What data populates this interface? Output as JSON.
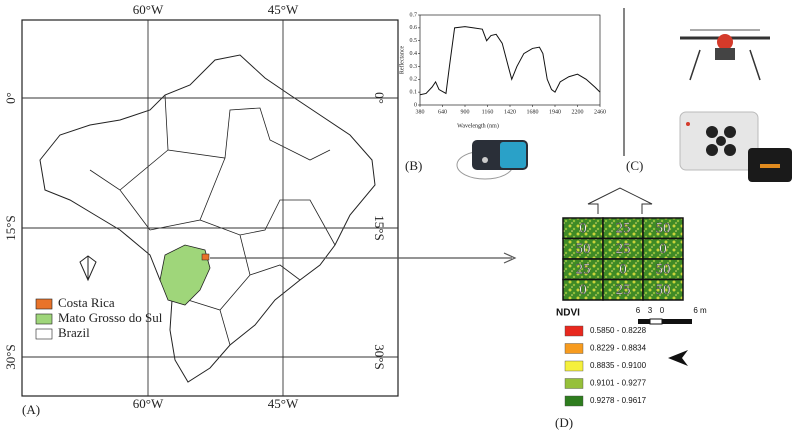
{
  "map": {
    "top_labels": [
      "60°W",
      "45°W"
    ],
    "bottom_labels": [
      "60°W",
      "45°W"
    ],
    "left_labels": [
      "0°",
      "15°S",
      "30°S"
    ],
    "right_labels": [
      "0°",
      "15°S",
      "30°S"
    ],
    "legend": [
      {
        "name": "Costa Rica",
        "color": "#e8732a"
      },
      {
        "name": "Mato Grosso do Sul",
        "color": "#9fd67a"
      },
      {
        "name": "Brazil",
        "color": "#ffffff"
      }
    ],
    "panel": "(A)"
  },
  "chart_data": {
    "type": "line",
    "xlabel": "Wavelength (nm)",
    "ylabel": "Reflectance",
    "x": [
      380,
      450,
      520,
      560,
      600,
      680,
      720,
      780,
      900,
      1000,
      1100,
      1150,
      1200,
      1260,
      1330,
      1400,
      1440,
      1500,
      1580,
      1680,
      1760,
      1800,
      1850,
      1900,
      1940,
      2000,
      2100,
      2200,
      2300,
      2400,
      2460
    ],
    "values": [
      0.08,
      0.09,
      0.14,
      0.18,
      0.12,
      0.09,
      0.3,
      0.6,
      0.61,
      0.6,
      0.59,
      0.5,
      0.54,
      0.55,
      0.48,
      0.3,
      0.2,
      0.3,
      0.4,
      0.44,
      0.45,
      0.4,
      0.2,
      0.12,
      0.1,
      0.18,
      0.22,
      0.24,
      0.2,
      0.14,
      0.1
    ],
    "color": "#111111",
    "xlim": [
      380,
      2460
    ],
    "ylim": [
      0,
      0.7
    ],
    "xticks": [
      380,
      640,
      900,
      1160,
      1420,
      1680,
      1940,
      2200,
      2460
    ],
    "yticks": [
      0,
      0.1,
      0.2,
      0.3,
      0.4,
      0.5,
      0.6,
      0.7
    ]
  },
  "panels": [
    "(B)",
    "(C)",
    "(D)"
  ],
  "plots": {
    "rows": [
      [
        "0",
        "25",
        "50"
      ],
      [
        "50",
        "25",
        "0"
      ],
      [
        "25",
        "0",
        "50"
      ],
      [
        "0",
        "25",
        "50"
      ]
    ]
  },
  "ndvi": {
    "title": "NDVI",
    "classes": [
      {
        "label": "0.5850 - 0.8228",
        "color": "#e8281e"
      },
      {
        "label": "0.8229 - 0.8834",
        "color": "#f79b1e"
      },
      {
        "label": "0.8835 - 0.9100",
        "color": "#f5f03c"
      },
      {
        "label": "0.9101 - 0.9277",
        "color": "#96c03a"
      },
      {
        "label": "0.9278 - 0.9617",
        "color": "#2e7d1e"
      }
    ]
  },
  "scalebar": [
    "6",
    "3",
    "0",
    "6 m"
  ]
}
